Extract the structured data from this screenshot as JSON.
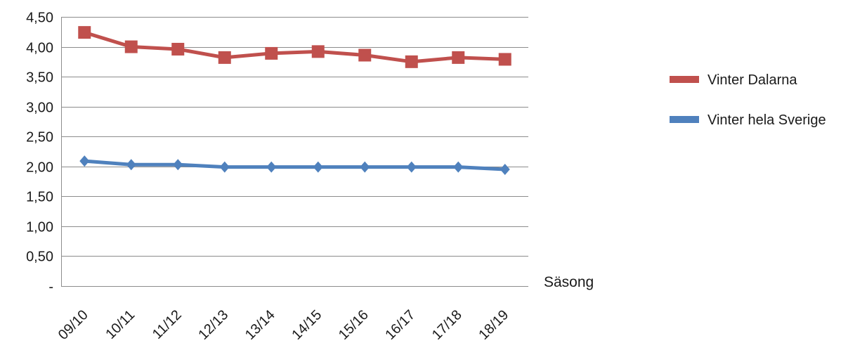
{
  "chart_data": {
    "type": "line",
    "xlabel": "Säsong",
    "ylabel": "",
    "categories": [
      "09/10",
      "10/11",
      "11/12",
      "12/13",
      "13/14",
      "14/15",
      "15/16",
      "16/17",
      "17/18",
      "18/19"
    ],
    "ylim": [
      0,
      4.5
    ],
    "yticks": [
      {
        "value": 0,
        "label": "-"
      },
      {
        "value": 0.5,
        "label": "0,50"
      },
      {
        "value": 1.0,
        "label": "1,00"
      },
      {
        "value": 1.5,
        "label": "1,50"
      },
      {
        "value": 2.0,
        "label": "2,00"
      },
      {
        "value": 2.5,
        "label": "2,50"
      },
      {
        "value": 3.0,
        "label": "3,00"
      },
      {
        "value": 3.5,
        "label": "3,50"
      },
      {
        "value": 4.0,
        "label": "4,00"
      },
      {
        "value": 4.5,
        "label": "4,50"
      }
    ],
    "grid": true,
    "legend_position": "right",
    "series": [
      {
        "name": "Vinter Dalarna",
        "color": "#C0504D",
        "marker": "square",
        "values": [
          4.24,
          4.0,
          3.96,
          3.82,
          3.89,
          3.92,
          3.86,
          3.75,
          3.82,
          3.79
        ]
      },
      {
        "name": "Vinter hela Sverige",
        "color": "#4F81BD",
        "marker": "diamond",
        "values": [
          2.09,
          2.03,
          2.03,
          1.99,
          1.99,
          1.99,
          1.99,
          1.99,
          1.99,
          1.95
        ]
      }
    ]
  }
}
